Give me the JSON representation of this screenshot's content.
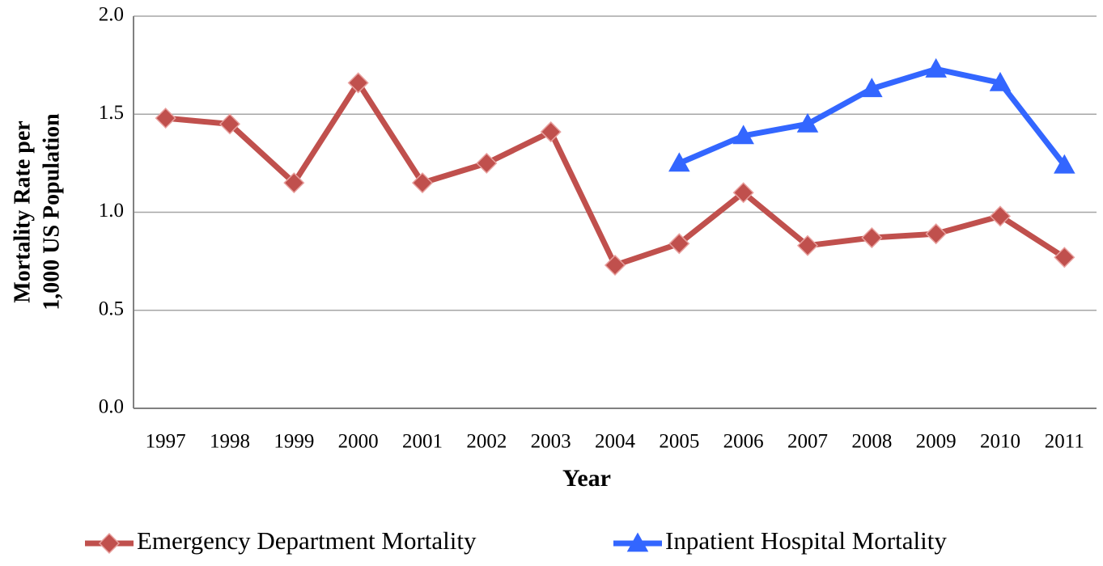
{
  "chart_data": {
    "type": "line",
    "y_label": [
      "Mortality Rate per",
      "1,000 US Population"
    ],
    "x_label": "Year",
    "categories": [
      "1997",
      "1998",
      "1999",
      "2000",
      "2001",
      "2002",
      "2003",
      "2004",
      "2005",
      "2006",
      "2007",
      "2008",
      "2009",
      "2010",
      "2011"
    ],
    "series": [
      {
        "name": "Emergency Department Mortality",
        "color": "#c0504d",
        "marker": "diamond",
        "values": [
          1.48,
          1.45,
          1.15,
          1.66,
          1.15,
          1.25,
          1.41,
          0.73,
          0.84,
          1.1,
          0.83,
          0.87,
          0.89,
          0.98,
          0.77
        ]
      },
      {
        "name": "Inpatient Hospital Mortality",
        "color": "#3366ff",
        "marker": "triangle",
        "values": [
          null,
          null,
          null,
          null,
          null,
          null,
          null,
          null,
          1.25,
          1.39,
          1.45,
          1.63,
          1.73,
          1.66,
          1.24
        ]
      }
    ],
    "ylim": [
      0,
      2
    ],
    "yticks": [
      {
        "value": 0,
        "label": "0.0"
      },
      0.5,
      {
        "value": 1,
        "label": "1.0"
      },
      1.5,
      {
        "value": 2,
        "label": "2.0"
      }
    ],
    "grid": true,
    "legend": "bottom"
  }
}
